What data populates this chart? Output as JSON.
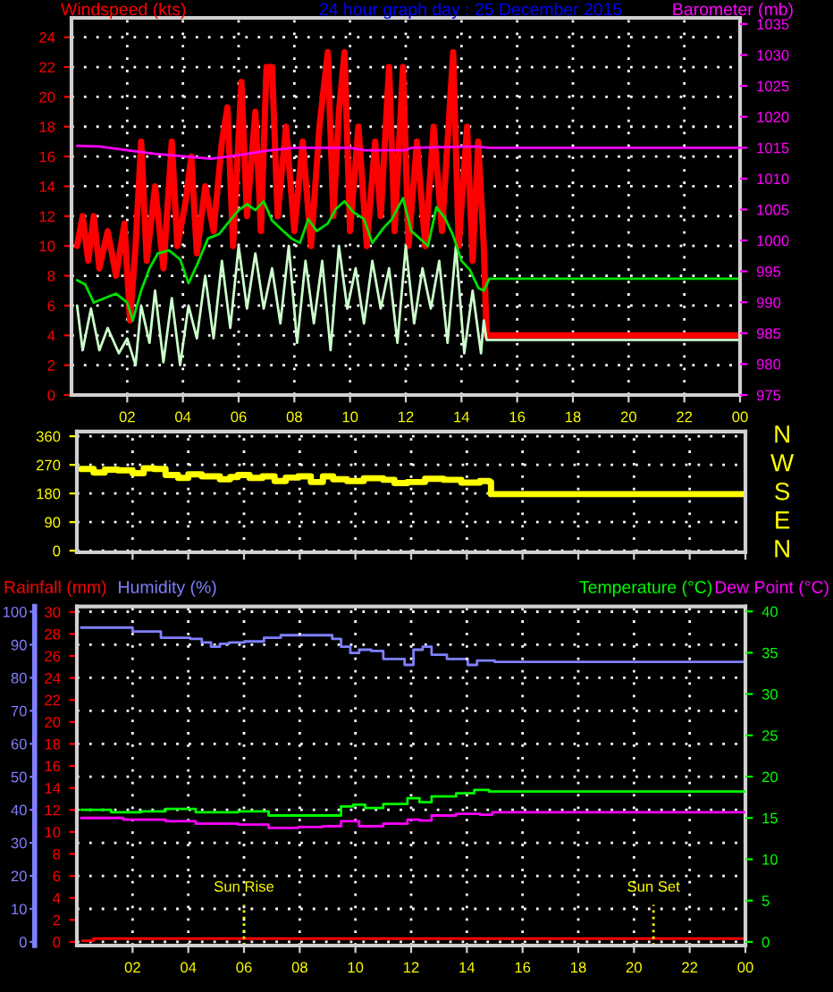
{
  "chart_data": [
    {
      "type": "line",
      "title": "24 hour graph day : 25 December 2015",
      "ylabel": "Windspeed (kts)",
      "y2label": "Barometer (mb)",
      "xlim": [
        "2015-12-25T00:00",
        "2015-12-26T00:00"
      ],
      "xticks": [
        {
          "value": "2015-12-25T02:00",
          "label": "02"
        },
        {
          "value": "2015-12-25T04:00",
          "label": "04"
        },
        {
          "value": "2015-12-25T06:00",
          "label": "06"
        },
        {
          "value": "2015-12-25T08:00",
          "label": "08"
        },
        {
          "value": "2015-12-25T10:00",
          "label": "10"
        },
        {
          "value": "2015-12-25T12:00",
          "label": "12"
        },
        {
          "value": "2015-12-25T14:00",
          "label": "14"
        },
        {
          "value": "2015-12-25T16:00",
          "label": "16"
        },
        {
          "value": "2015-12-25T18:00",
          "label": "18"
        },
        {
          "value": "2015-12-25T20:00",
          "label": "20"
        },
        {
          "value": "2015-12-25T22:00",
          "label": "22"
        },
        {
          "value": "2015-12-26T00:00",
          "label": "00"
        }
      ],
      "ylim": [
        0,
        25.3
      ],
      "yticks": [
        0,
        2,
        4,
        6,
        8,
        10,
        12,
        14,
        16,
        18,
        20,
        22,
        24
      ],
      "y2lim": [
        975,
        1036
      ],
      "y2ticks": [
        975,
        980,
        985,
        990,
        995,
        1000,
        1005,
        1010,
        1015,
        1020,
        1025,
        1030,
        1035
      ],
      "grid": true,
      "legend": false,
      "marker": "none",
      "line_style": "solid",
      "series": [
        {
          "color": "#ff0000",
          "x": [
            "2015-12-25T00:12",
            "2015-12-25T00:24",
            "2015-12-25T00:36",
            "2015-12-25T00:48",
            "2015-12-25T01:00",
            "2015-12-25T01:18",
            "2015-12-25T01:36",
            "2015-12-25T01:54",
            "2015-12-25T02:06",
            "2015-12-25T02:18",
            "2015-12-25T02:30",
            "2015-12-25T02:42",
            "2015-12-25T03:00",
            "2015-12-25T03:18",
            "2015-12-25T03:36",
            "2015-12-25T03:48",
            "2015-12-25T04:06",
            "2015-12-25T04:18",
            "2015-12-25T04:30",
            "2015-12-25T04:48",
            "2015-12-25T05:06",
            "2015-12-25T05:24",
            "2015-12-25T05:36",
            "2015-12-25T05:48",
            "2015-12-25T06:06",
            "2015-12-25T06:18",
            "2015-12-25T06:36",
            "2015-12-25T06:48",
            "2015-12-25T07:00",
            "2015-12-25T07:12",
            "2015-12-25T07:24",
            "2015-12-25T07:42",
            "2015-12-25T08:00",
            "2015-12-25T08:18",
            "2015-12-25T08:36",
            "2015-12-25T08:54",
            "2015-12-25T09:12",
            "2015-12-25T09:24",
            "2015-12-25T09:36",
            "2015-12-25T09:48",
            "2015-12-25T10:00",
            "2015-12-25T10:18",
            "2015-12-25T10:36",
            "2015-12-25T10:54",
            "2015-12-25T11:06",
            "2015-12-25T11:24",
            "2015-12-25T11:36",
            "2015-12-25T11:54",
            "2015-12-25T12:06",
            "2015-12-25T12:24",
            "2015-12-25T12:42",
            "2015-12-25T13:00",
            "2015-12-25T13:18",
            "2015-12-25T13:42",
            "2015-12-25T13:54",
            "2015-12-25T14:12",
            "2015-12-25T14:24",
            "2015-12-25T14:36",
            "2015-12-25T14:48",
            "2015-12-25T14:54",
            "2015-12-26T00:00"
          ],
          "values": [
            10,
            12,
            9,
            12,
            8.5,
            11,
            8,
            11.5,
            5,
            10,
            17,
            9,
            14,
            8.5,
            17,
            10,
            13,
            16,
            9.5,
            14,
            11,
            17,
            19.3,
            10,
            21,
            12,
            19,
            11,
            22,
            22,
            12,
            18,
            11,
            17,
            10,
            18,
            23,
            12,
            19,
            23,
            11,
            18,
            10,
            17,
            12,
            22,
            11,
            22,
            10,
            17,
            10,
            18,
            11,
            23,
            10,
            18,
            9,
            17,
            10,
            4,
            4
          ]
        },
        {
          "color": "#ccffcc",
          "x": [
            "2015-12-25T00:12",
            "2015-12-25T00:24",
            "2015-12-25T00:42",
            "2015-12-25T01:00",
            "2015-12-25T01:18",
            "2015-12-25T01:42",
            "2015-12-25T02:00",
            "2015-12-25T02:18",
            "2015-12-25T02:30",
            "2015-12-25T02:48",
            "2015-12-25T03:00",
            "2015-12-25T03:18",
            "2015-12-25T03:36",
            "2015-12-25T03:54",
            "2015-12-25T04:12",
            "2015-12-25T04:30",
            "2015-12-25T04:48",
            "2015-12-25T05:06",
            "2015-12-25T05:24",
            "2015-12-25T05:42",
            "2015-12-25T06:00",
            "2015-12-25T06:18",
            "2015-12-25T06:36",
            "2015-12-25T06:54",
            "2015-12-25T07:12",
            "2015-12-25T07:30",
            "2015-12-25T07:48",
            "2015-12-25T08:06",
            "2015-12-25T08:24",
            "2015-12-25T08:42",
            "2015-12-25T09:00",
            "2015-12-25T09:18",
            "2015-12-25T09:36",
            "2015-12-25T09:54",
            "2015-12-25T10:12",
            "2015-12-25T10:30",
            "2015-12-25T10:48",
            "2015-12-25T11:06",
            "2015-12-25T11:24",
            "2015-12-25T11:42",
            "2015-12-25T12:00",
            "2015-12-25T12:18",
            "2015-12-25T12:36",
            "2015-12-25T12:54",
            "2015-12-25T13:12",
            "2015-12-25T13:30",
            "2015-12-25T13:48",
            "2015-12-25T14:06",
            "2015-12-25T14:24",
            "2015-12-25T14:42",
            "2015-12-25T14:48",
            "2015-12-25T14:54",
            "2015-12-26T00:00"
          ],
          "values": [
            6,
            3,
            5.8,
            3,
            4.5,
            2.8,
            3.8,
            2,
            6,
            3.5,
            7,
            2.2,
            6.5,
            2,
            6,
            3.8,
            8,
            3.8,
            9,
            4.5,
            10,
            5.8,
            9.5,
            5.8,
            8.5,
            4.8,
            10,
            3.5,
            9,
            4.8,
            9,
            3,
            10,
            5.8,
            8.5,
            4.8,
            9,
            5.8,
            8.5,
            3.5,
            10,
            4.8,
            8.5,
            5.8,
            9,
            3.5,
            10,
            2.8,
            7,
            2.8,
            5,
            3.7,
            3.7
          ]
        },
        {
          "color": "#00e000",
          "x": [
            "2015-12-25T00:12",
            "2015-12-25T00:30",
            "2015-12-25T00:48",
            "2015-12-25T01:12",
            "2015-12-25T01:36",
            "2015-12-25T02:00",
            "2015-12-25T02:12",
            "2015-12-25T02:30",
            "2015-12-25T02:48",
            "2015-12-25T03:06",
            "2015-12-25T03:30",
            "2015-12-25T03:54",
            "2015-12-25T04:12",
            "2015-12-25T04:30",
            "2015-12-25T04:54",
            "2015-12-25T05:18",
            "2015-12-25T05:36",
            "2015-12-25T06:00",
            "2015-12-25T06:18",
            "2015-12-25T06:36",
            "2015-12-25T06:54",
            "2015-12-25T07:12",
            "2015-12-25T07:36",
            "2015-12-25T07:54",
            "2015-12-25T08:12",
            "2015-12-25T08:30",
            "2015-12-25T08:48",
            "2015-12-25T09:12",
            "2015-12-25T09:30",
            "2015-12-25T09:48",
            "2015-12-25T10:06",
            "2015-12-25T10:30",
            "2015-12-25T10:48",
            "2015-12-25T11:12",
            "2015-12-25T11:30",
            "2015-12-25T11:54",
            "2015-12-25T12:12",
            "2015-12-25T12:30",
            "2015-12-25T12:48",
            "2015-12-25T13:06",
            "2015-12-25T13:24",
            "2015-12-25T13:42",
            "2015-12-25T14:00",
            "2015-12-25T14:18",
            "2015-12-25T14:36",
            "2015-12-25T14:48",
            "2015-12-25T15:00",
            "2015-12-26T00:00"
          ],
          "values": [
            7.7,
            7.4,
            6.2,
            6.5,
            6.8,
            6.2,
            5,
            7,
            8.5,
            9.5,
            9.7,
            9.1,
            7.5,
            8.7,
            10.5,
            10.8,
            11.5,
            12.4,
            12.8,
            12.4,
            13,
            11.7,
            11,
            10.5,
            10.2,
            11.8,
            11,
            11.5,
            12.5,
            13,
            12.3,
            11.8,
            10.2,
            11.2,
            11.8,
            13.2,
            11,
            10.5,
            10,
            12.6,
            11.9,
            10.7,
            9,
            8.4,
            7.2,
            7,
            7.8,
            7.8
          ]
        },
        {
          "color": "#ff00ff",
          "axis": "y2",
          "x": [
            "2015-12-25T00:12",
            "2015-12-25T01:00",
            "2015-12-25T02:00",
            "2015-12-25T03:00",
            "2015-12-25T04:00",
            "2015-12-25T05:00",
            "2015-12-25T06:00",
            "2015-12-25T07:00",
            "2015-12-25T08:00",
            "2015-12-25T10:00",
            "2015-12-25T10:30",
            "2015-12-25T12:00",
            "2015-12-25T12:12",
            "2015-12-25T14:30",
            "2015-12-25T15:00",
            "2015-12-26T00:00"
          ],
          "values": [
            1015.3,
            1015.2,
            1014.6,
            1014.0,
            1013.6,
            1013.2,
            1013.8,
            1014.5,
            1015,
            1015,
            1014.6,
            1014.6,
            1015,
            1015.2,
            1015,
            1015
          ]
        }
      ]
    },
    {
      "type": "step",
      "xlim": [
        "2015-12-25T00:00",
        "2015-12-26T00:00"
      ],
      "xticks": [
        {
          "value": "2015-12-25T02:00",
          "label": null
        },
        {
          "value": "2015-12-25T04:00",
          "label": null
        },
        {
          "value": "2015-12-25T06:00",
          "label": null
        },
        {
          "value": "2015-12-25T08:00",
          "label": null
        },
        {
          "value": "2015-12-25T10:00",
          "label": null
        },
        {
          "value": "2015-12-25T12:00",
          "label": null
        },
        {
          "value": "2015-12-25T14:00",
          "label": null
        },
        {
          "value": "2015-12-25T16:00",
          "label": null
        },
        {
          "value": "2015-12-25T18:00",
          "label": null
        },
        {
          "value": "2015-12-25T20:00",
          "label": null
        },
        {
          "value": "2015-12-25T22:00",
          "label": null
        },
        {
          "value": "2015-12-26T00:00",
          "label": null
        }
      ],
      "tick_labels": "y",
      "ylim": [
        -5,
        375
      ],
      "yticks": [
        0,
        90,
        180,
        270,
        360
      ],
      "y2_categories": [
        "N",
        "W",
        "S",
        "E",
        "N"
      ],
      "grid": true,
      "legend": false,
      "marker": "none",
      "line_style": "solid",
      "series": [
        {
          "color": "#ffff00",
          "x": [
            "2015-12-25T00:09",
            "2015-12-25T00:36",
            "2015-12-25T01:00",
            "2015-12-25T01:28",
            "2015-12-25T02:00",
            "2015-12-25T02:24",
            "2015-12-25T02:46",
            "2015-12-25T03:11",
            "2015-12-25T03:38",
            "2015-12-25T04:00",
            "2015-12-25T04:29",
            "2015-12-25T05:08",
            "2015-12-25T05:30",
            "2015-12-25T05:47",
            "2015-12-25T06:12",
            "2015-12-25T06:40",
            "2015-12-25T07:06",
            "2015-12-25T07:30",
            "2015-12-25T07:57",
            "2015-12-25T08:24",
            "2015-12-25T08:50",
            "2015-12-25T09:12",
            "2015-12-25T09:42",
            "2015-12-25T10:18",
            "2015-12-25T11:00",
            "2015-12-25T11:24",
            "2015-12-25T11:52",
            "2015-12-25T12:30",
            "2015-12-25T13:10",
            "2015-12-25T13:48",
            "2015-12-25T14:28",
            "2015-12-25T14:48",
            "2015-12-25T14:52",
            "2015-12-26T00:00"
          ],
          "values": [
            257,
            246,
            255,
            253,
            244,
            259,
            257,
            238,
            229,
            240,
            234,
            225,
            232,
            238,
            229,
            234,
            219,
            230,
            234,
            216,
            234,
            225,
            219,
            228,
            223,
            213,
            216,
            226,
            223,
            214,
            219,
            216,
            178,
            178
          ]
        }
      ]
    },
    {
      "type": "step",
      "xlim": [
        "2015-12-25T00:00",
        "2015-12-26T00:00"
      ],
      "xticks": [
        {
          "value": "2015-12-25T02:00",
          "label": "02"
        },
        {
          "value": "2015-12-25T04:00",
          "label": "04"
        },
        {
          "value": "2015-12-25T06:00",
          "label": "06"
        },
        {
          "value": "2015-12-25T08:00",
          "label": "08"
        },
        {
          "value": "2015-12-25T10:00",
          "label": "10"
        },
        {
          "value": "2015-12-25T12:00",
          "label": "12"
        },
        {
          "value": "2015-12-25T14:00",
          "label": "14"
        },
        {
          "value": "2015-12-25T16:00",
          "label": "16"
        },
        {
          "value": "2015-12-25T18:00",
          "label": "18"
        },
        {
          "value": "2015-12-25T20:00",
          "label": "20"
        },
        {
          "value": "2015-12-25T22:00",
          "label": "22"
        },
        {
          "value": "2015-12-26T00:00",
          "label": "00"
        }
      ],
      "ylim": [
        -0.33,
        30.5
      ],
      "yticks": [
        0,
        2,
        4,
        6,
        8,
        10,
        12,
        14,
        16,
        18,
        20,
        22,
        24,
        26,
        28,
        30
      ],
      "y3lim": [
        -1.1,
        101.6
      ],
      "y3ticks": [
        0,
        10,
        20,
        30,
        40,
        50,
        60,
        70,
        80,
        90,
        100
      ],
      "y2lim": [
        -0.44,
        40.6
      ],
      "y2ticks": [
        0,
        5,
        10,
        15,
        20,
        25,
        30,
        35,
        40
      ],
      "grid": true,
      "legend": false,
      "marker": "none",
      "line_style": "solid",
      "ref_lines": [
        {
          "axis": "x",
          "value": "2015-12-25T06:00",
          "label": "Sun Rise",
          "color": "#ffff00",
          "line_style": "dotted"
        },
        {
          "axis": "x",
          "value": "2015-12-25T20:42",
          "label": "Sun Set",
          "color": "#ffff00",
          "line_style": "dotted"
        }
      ],
      "series": [
        {
          "name": "Rainfall (mm)",
          "color": "#ff0000",
          "x": [
            "2015-12-25T00:12",
            "2015-12-25T00:36",
            "2015-12-26T00:00"
          ],
          "values": [
            0.1,
            0.3,
            0.3
          ]
        },
        {
          "name": "Humidity (%)",
          "color": "#8080ff",
          "axis": "y3",
          "x": [
            "2015-12-25T00:09",
            "2015-12-25T01:56",
            "2015-12-25T02:00",
            "2015-12-25T02:58",
            "2015-12-25T03:01",
            "2015-12-25T04:04",
            "2015-12-25T04:29",
            "2015-12-25T04:49",
            "2015-12-25T05:08",
            "2015-12-25T05:28",
            "2015-12-25T06:01",
            "2015-12-25T06:40",
            "2015-12-25T06:43",
            "2015-12-25T07:19",
            "2015-12-25T08:50",
            "2015-12-25T09:10",
            "2015-12-25T09:29",
            "2015-12-25T09:49",
            "2015-12-25T10:08",
            "2015-12-25T10:34",
            "2015-12-25T11:00",
            "2015-12-25T11:26",
            "2015-12-25T11:46",
            "2015-12-25T12:05",
            "2015-12-25T12:25",
            "2015-12-25T12:44",
            "2015-12-25T13:17",
            "2015-12-25T14:02",
            "2015-12-25T14:22",
            "2015-12-25T14:55",
            "2015-12-25T15:00",
            "2015-12-26T00:00"
          ],
          "values": [
            95.2,
            95.2,
            94.0,
            94.0,
            92.1,
            91.8,
            90.7,
            89.4,
            90.3,
            90.7,
            91.0,
            91.0,
            92.1,
            92.9,
            92.9,
            91.8,
            89.4,
            87.5,
            88.5,
            88.1,
            85.7,
            85.7,
            83.9,
            88.5,
            89.4,
            87.0,
            85.7,
            83.9,
            85.2,
            85.2,
            84.8,
            84.8
          ]
        },
        {
          "name": "Temperature (°C)",
          "color": "#00ff00",
          "axis": "y2",
          "x": [
            "2015-12-25T00:09",
            "2015-12-25T01:14",
            "2015-12-25T02:19",
            "2015-12-25T03:11",
            "2015-12-25T04:16",
            "2015-12-25T05:47",
            "2015-12-25T06:53",
            "2015-12-25T08:50",
            "2015-12-25T09:29",
            "2015-12-25T09:55",
            "2015-12-25T10:21",
            "2015-12-25T11:00",
            "2015-12-25T11:52",
            "2015-12-25T12:18",
            "2015-12-25T12:44",
            "2015-12-25T13:37",
            "2015-12-25T14:16",
            "2015-12-25T14:48",
            "2015-12-26T00:00"
          ],
          "values": [
            16.0,
            15.7,
            15.8,
            16.1,
            15.7,
            15.8,
            15.3,
            15.3,
            16.4,
            16.6,
            16.2,
            16.7,
            17.4,
            16.9,
            17.6,
            18.0,
            18.4,
            18.2,
            18.2
          ]
        },
        {
          "name": "Dew Point (°C)",
          "color": "#ff00ff",
          "axis": "y2",
          "x": [
            "2015-12-25T00:09",
            "2015-12-25T01:40",
            "2015-12-25T03:11",
            "2015-12-25T04:16",
            "2015-12-25T05:47",
            "2015-12-25T06:53",
            "2015-12-25T07:57",
            "2015-12-25T08:50",
            "2015-12-25T09:29",
            "2015-12-25T10:08",
            "2015-12-25T11:00",
            "2015-12-25T11:52",
            "2015-12-25T12:18",
            "2015-12-25T12:44",
            "2015-12-25T13:37",
            "2015-12-25T14:28",
            "2015-12-25T14:55",
            "2015-12-26T00:00"
          ],
          "values": [
            15.0,
            14.8,
            14.6,
            14.3,
            14.2,
            13.8,
            13.9,
            14.0,
            14.6,
            14.0,
            14.3,
            14.8,
            14.7,
            15.3,
            15.5,
            15.4,
            15.7,
            15.7
          ]
        }
      ]
    }
  ]
}
